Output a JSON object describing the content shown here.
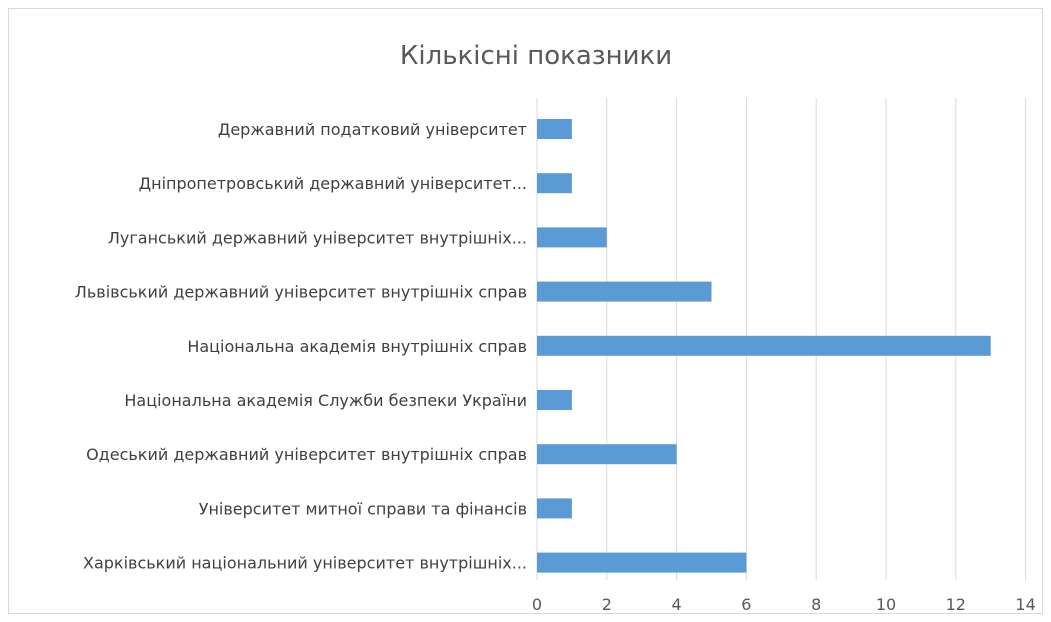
{
  "chart_data": {
    "type": "bar",
    "orientation": "horizontal",
    "title": "Кількісні показники",
    "xlabel": "",
    "ylabel": "",
    "categories": [
      "Державний податковий університет",
      "Дніпропетровський державний університет...",
      "Луганський державний університет внутрішніх...",
      "Львівський державний університет внутрішніх справ",
      "Національна академія внутрішніх справ",
      "Національна академія Служби безпеки України",
      "Одеський державний університет внутрішніх справ",
      "Університет митної справи та фінансів",
      "Харківський національний університет внутрішніх..."
    ],
    "values": [
      1,
      1,
      2,
      5,
      13,
      1,
      4,
      1,
      6
    ],
    "xlim": [
      0,
      14
    ],
    "xticks": [
      0,
      2,
      4,
      6,
      8,
      10,
      12,
      14
    ],
    "grid": true,
    "legend": "none",
    "bar_color": "#5b9bd5"
  }
}
